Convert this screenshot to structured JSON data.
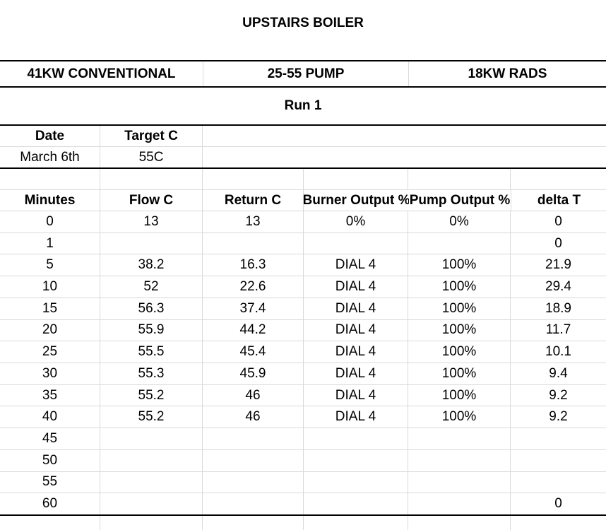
{
  "title": "UPSTAIRS BOILER",
  "equipment_bands": [
    {
      "label": "41KW CONVENTIONAL"
    },
    {
      "label": "25-55 PUMP"
    },
    {
      "label": "18KW RADS"
    }
  ],
  "run_label": "Run 1",
  "run_info": {
    "date_label": "Date",
    "target_label": "Target C",
    "date_value": "March 6th",
    "target_value": "55C"
  },
  "table": {
    "headers": [
      "Minutes",
      "Flow C",
      "Return C",
      "Burner Output %",
      "Pump Output %",
      "delta T"
    ],
    "rows": [
      {
        "minutes": "0",
        "flow": "13",
        "return": "13",
        "burner": "0%",
        "pump": "0%",
        "delta": "0"
      },
      {
        "minutes": "1",
        "flow": "",
        "return": "",
        "burner": "",
        "pump": "",
        "delta": "0"
      },
      {
        "minutes": "5",
        "flow": "38.2",
        "return": "16.3",
        "burner": "DIAL 4",
        "pump": "100%",
        "delta": "21.9"
      },
      {
        "minutes": "10",
        "flow": "52",
        "return": "22.6",
        "burner": "DIAL 4",
        "pump": "100%",
        "delta": "29.4"
      },
      {
        "minutes": "15",
        "flow": "56.3",
        "return": "37.4",
        "burner": "DIAL 4",
        "pump": "100%",
        "delta": "18.9"
      },
      {
        "minutes": "20",
        "flow": "55.9",
        "return": "44.2",
        "burner": "DIAL 4",
        "pump": "100%",
        "delta": "11.7"
      },
      {
        "minutes": "25",
        "flow": "55.5",
        "return": "45.4",
        "burner": "DIAL 4",
        "pump": "100%",
        "delta": "10.1"
      },
      {
        "minutes": "30",
        "flow": "55.3",
        "return": "45.9",
        "burner": "DIAL 4",
        "pump": "100%",
        "delta": "9.4"
      },
      {
        "minutes": "35",
        "flow": "55.2",
        "return": "46",
        "burner": "DIAL 4",
        "pump": "100%",
        "delta": "9.2"
      },
      {
        "minutes": "40",
        "flow": "55.2",
        "return": "46",
        "burner": "DIAL 4",
        "pump": "100%",
        "delta": "9.2"
      },
      {
        "minutes": "45",
        "flow": "",
        "return": "",
        "burner": "",
        "pump": "",
        "delta": ""
      },
      {
        "minutes": "50",
        "flow": "",
        "return": "",
        "burner": "",
        "pump": "",
        "delta": ""
      },
      {
        "minutes": "55",
        "flow": "",
        "return": "",
        "burner": "",
        "pump": "",
        "delta": ""
      },
      {
        "minutes": "60",
        "flow": "",
        "return": "",
        "burner": "",
        "pump": "",
        "delta": "0"
      }
    ]
  },
  "colors": {
    "gridline": "#d9d9d9",
    "thick_border": "#000000",
    "text": "#000000",
    "background": "#ffffff"
  }
}
